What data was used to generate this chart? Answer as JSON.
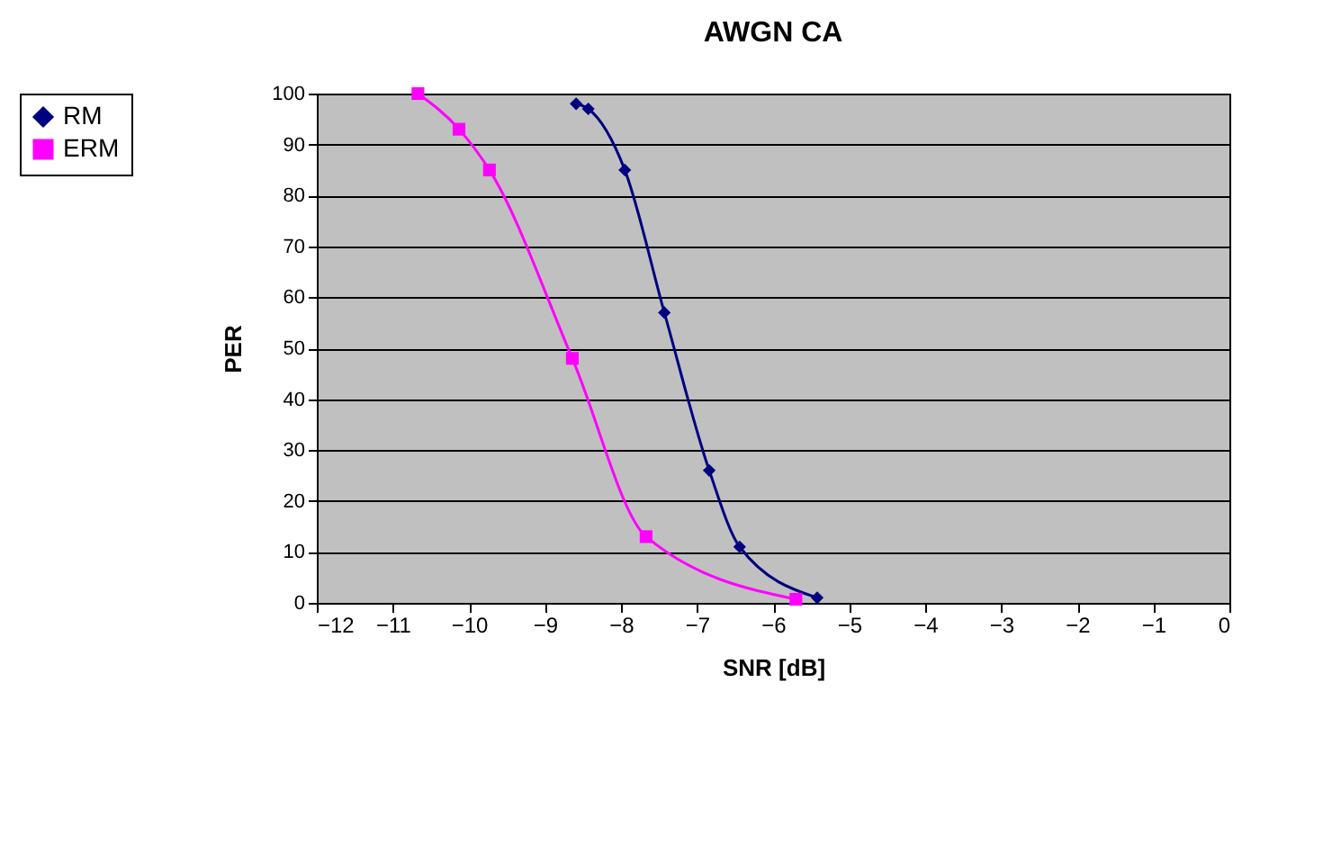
{
  "chart_data": {
    "type": "line",
    "title": "AWGN CA",
    "xlabel": "SNR [dB]",
    "ylabel": "PER",
    "xlim": [
      -12,
      0
    ],
    "xticks": [
      -12,
      -11,
      -10,
      -9,
      -8,
      -7,
      -6,
      -5,
      -4,
      -3,
      -2,
      -1,
      0
    ],
    "ylim": [
      0,
      100
    ],
    "yticks": [
      0,
      10,
      20,
      30,
      40,
      50,
      60,
      70,
      80,
      90,
      100
    ],
    "grid": "y",
    "legend": "left",
    "series": [
      {
        "name": "RM",
        "color": "#000080",
        "marker": "diamond",
        "x": [
          -8.59,
          -8.43,
          -7.95,
          -7.43,
          -6.84,
          -6.44,
          -5.42
        ],
        "values": [
          98,
          97,
          85,
          57,
          26,
          11,
          1
        ]
      },
      {
        "name": "ERM",
        "color": "#ff00ff",
        "marker": "square",
        "x": [
          -10.67,
          -10.13,
          -9.73,
          -8.64,
          -7.67,
          -5.7
        ],
        "values": [
          100,
          93,
          85,
          48,
          13,
          0.7
        ]
      }
    ]
  }
}
